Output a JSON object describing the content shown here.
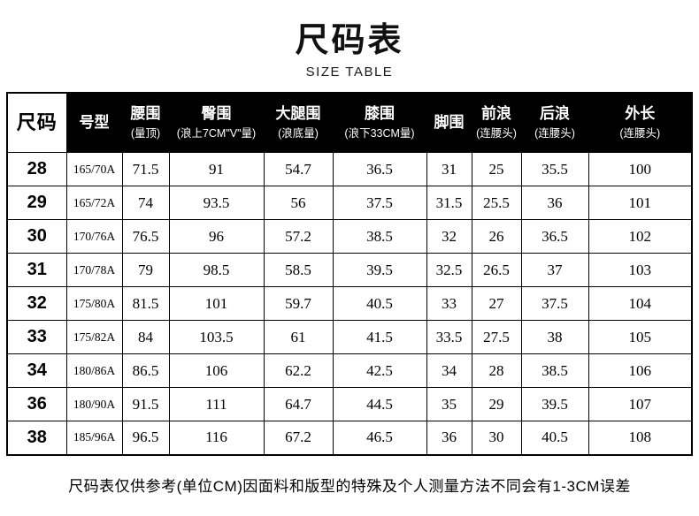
{
  "page": {
    "title": "尺码表",
    "subtitle": "SIZE TABLE",
    "footnote": "尺码表仅供参考(单位CM)因面料和版型的特殊及个人测量方法不同会有1-3CM误差"
  },
  "table": {
    "unit": "CM",
    "headers": [
      {
        "main": "尺码",
        "sub": ""
      },
      {
        "main": "号型",
        "sub": ""
      },
      {
        "main": "腰围",
        "sub": "(量顶)"
      },
      {
        "main": "臀围",
        "sub": "(浪上7CM\"V\"量)"
      },
      {
        "main": "大腿围",
        "sub": "(浪底量)"
      },
      {
        "main": "膝围",
        "sub": "(浪下33CM量)"
      },
      {
        "main": "脚围",
        "sub": ""
      },
      {
        "main": "前浪",
        "sub": "(连腰头)"
      },
      {
        "main": "后浪",
        "sub": "(连腰头)"
      },
      {
        "main": "外长",
        "sub": "(连腰头)"
      }
    ],
    "rows": [
      [
        "28",
        "165/70A",
        "71.5",
        "91",
        "54.7",
        "36.5",
        "31",
        "25",
        "35.5",
        "100"
      ],
      [
        "29",
        "165/72A",
        "74",
        "93.5",
        "56",
        "37.5",
        "31.5",
        "25.5",
        "36",
        "101"
      ],
      [
        "30",
        "170/76A",
        "76.5",
        "96",
        "57.2",
        "38.5",
        "32",
        "26",
        "36.5",
        "102"
      ],
      [
        "31",
        "170/78A",
        "79",
        "98.5",
        "58.5",
        "39.5",
        "32.5",
        "26.5",
        "37",
        "103"
      ],
      [
        "32",
        "175/80A",
        "81.5",
        "101",
        "59.7",
        "40.5",
        "33",
        "27",
        "37.5",
        "104"
      ],
      [
        "33",
        "175/82A",
        "84",
        "103.5",
        "61",
        "41.5",
        "33.5",
        "27.5",
        "38",
        "105"
      ],
      [
        "34",
        "180/86A",
        "86.5",
        "106",
        "62.2",
        "42.5",
        "34",
        "28",
        "38.5",
        "106"
      ],
      [
        "36",
        "180/90A",
        "91.5",
        "111",
        "64.7",
        "44.5",
        "35",
        "29",
        "39.5",
        "107"
      ],
      [
        "38",
        "185/96A",
        "96.5",
        "116",
        "67.2",
        "46.5",
        "36",
        "30",
        "40.5",
        "108"
      ]
    ]
  }
}
